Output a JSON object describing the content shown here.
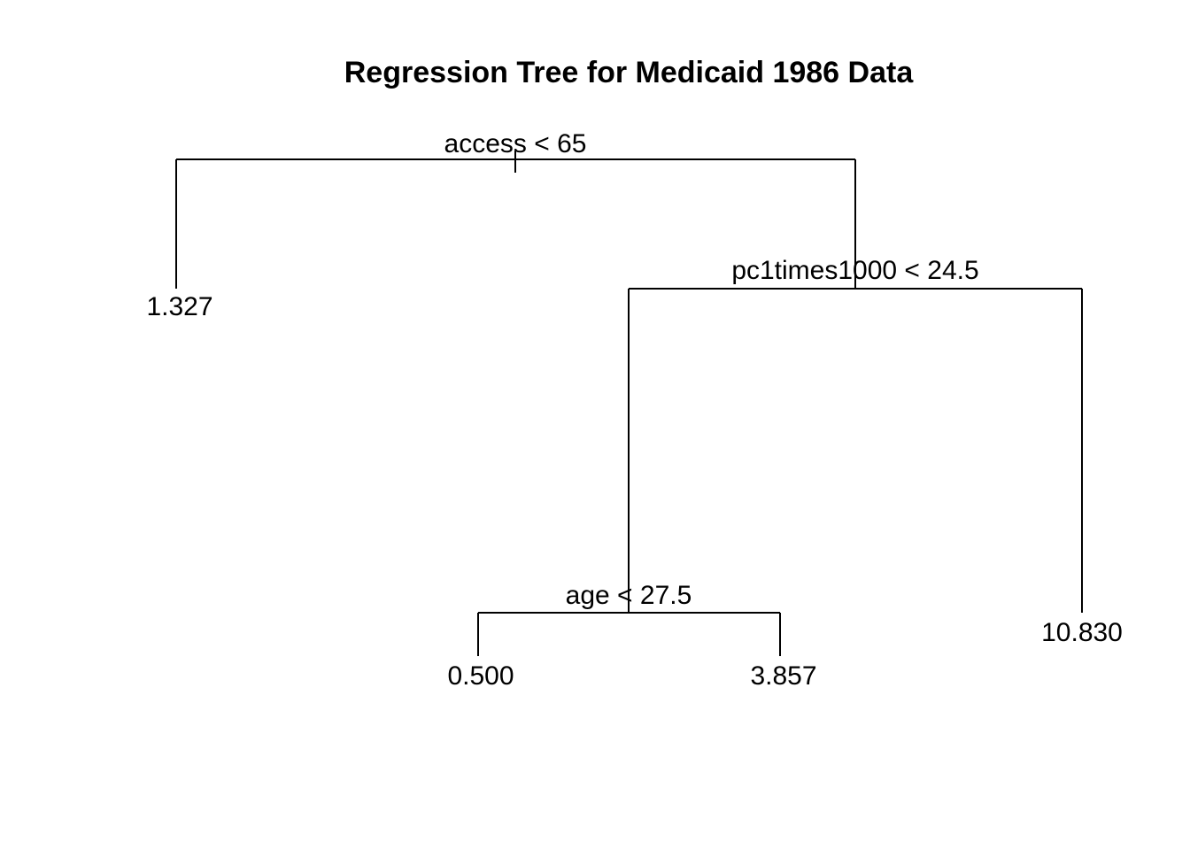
{
  "title": "Regression Tree for Medicaid 1986 Data",
  "tree": {
    "root": {
      "split": "access < 65",
      "left_leaf": "1.327",
      "right": {
        "split": "pc1times1000 < 24.5",
        "left": {
          "split": "age < 27.5",
          "left_leaf": "0.500",
          "right_leaf": "3.857"
        },
        "right_leaf": "10.830"
      }
    }
  }
}
